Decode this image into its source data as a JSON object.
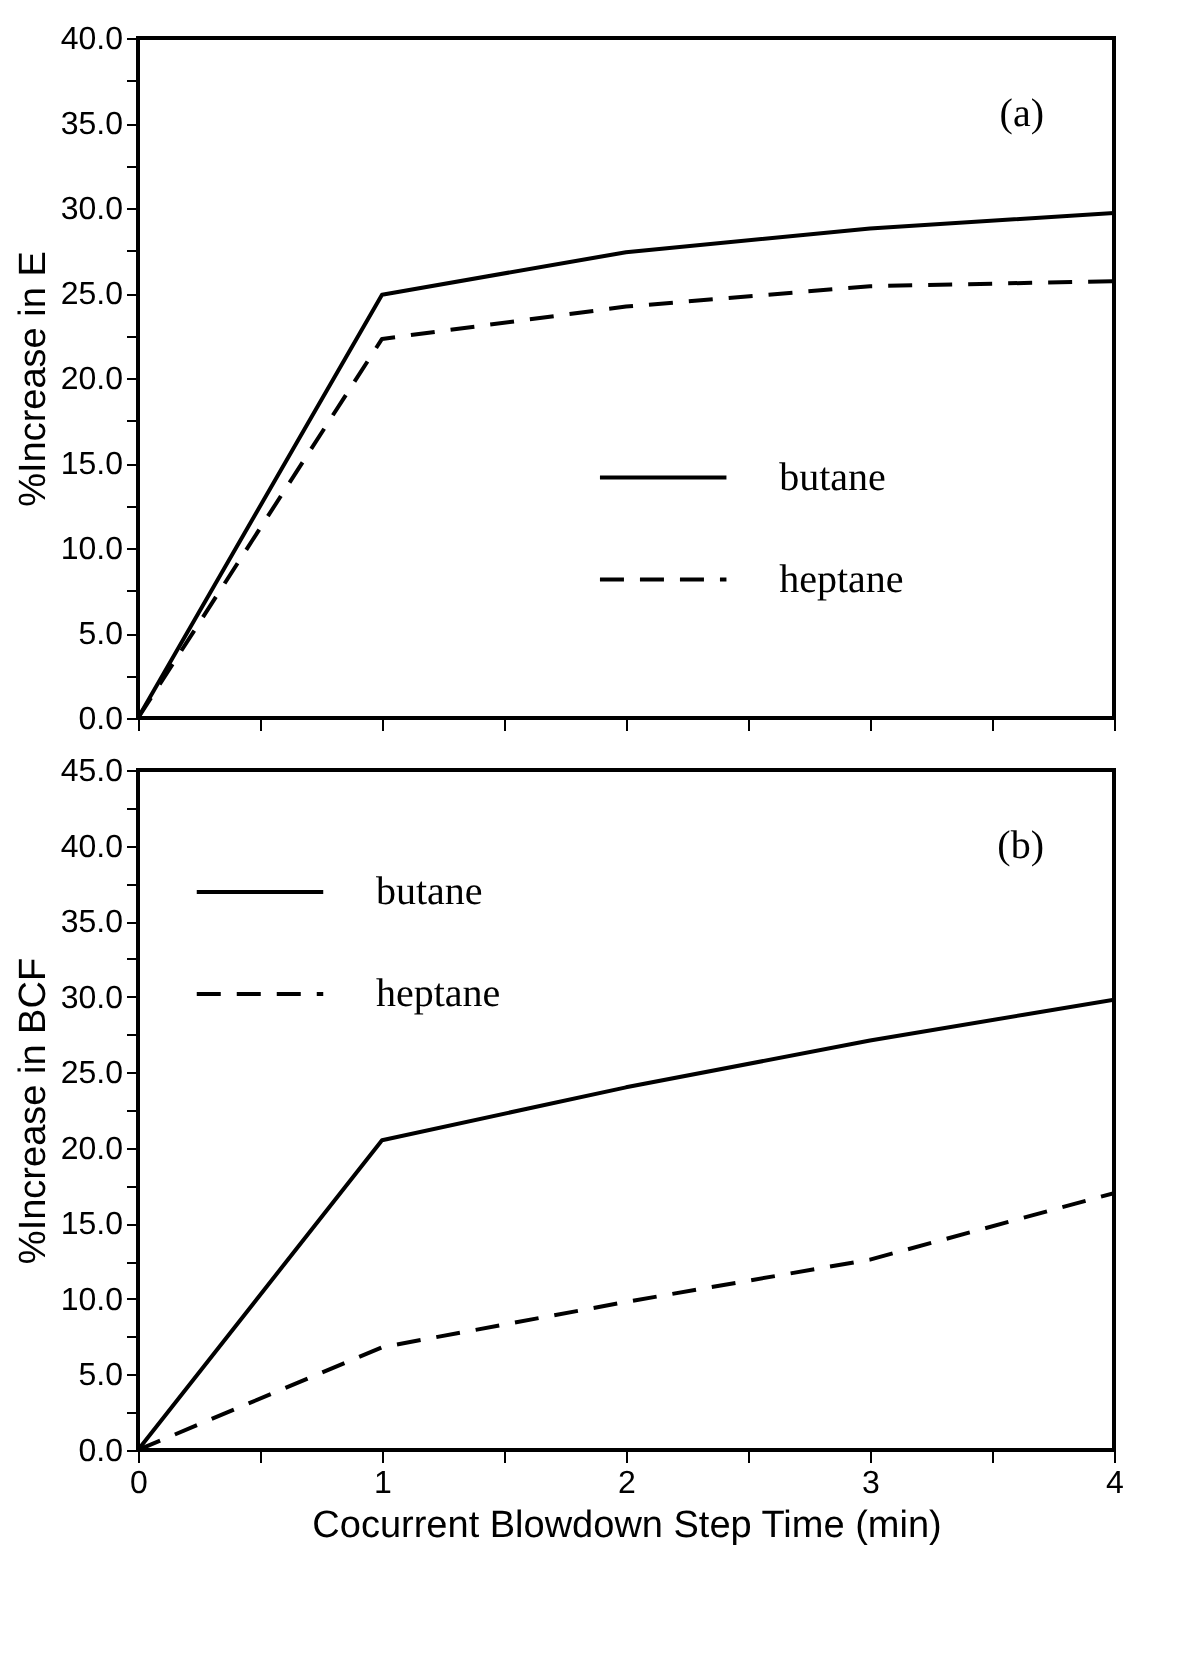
{
  "chart_data": [
    {
      "type": "line",
      "ylabel": "%Increase in E",
      "annotations": [
        "(a)"
      ],
      "legend": "right",
      "tick_labels": "y",
      "grid": false,
      "x": [
        0,
        1,
        2,
        3,
        4
      ],
      "xlim": [
        0,
        4
      ],
      "xticks": [
        {
          "value": 0,
          "label": null
        },
        {
          "value": 0.5,
          "label": null
        },
        {
          "value": 1,
          "label": null
        },
        {
          "value": 1.5,
          "label": null
        },
        {
          "value": 2,
          "label": null
        },
        {
          "value": 2.5,
          "label": null
        },
        {
          "value": 3,
          "label": null
        },
        {
          "value": 3.5,
          "label": null
        },
        {
          "value": 4,
          "label": null
        }
      ],
      "ylim": [
        0,
        40
      ],
      "yticks": [
        {
          "value": 0,
          "label": "0.0"
        },
        {
          "value": 2.5,
          "label": null
        },
        {
          "value": 5,
          "label": "5.0"
        },
        {
          "value": 7.5,
          "label": null
        },
        {
          "value": 10,
          "label": "10.0"
        },
        {
          "value": 12.5,
          "label": null
        },
        {
          "value": 15,
          "label": "15.0"
        },
        {
          "value": 17.5,
          "label": null
        },
        {
          "value": 20,
          "label": "20.0"
        },
        {
          "value": 22.5,
          "label": null
        },
        {
          "value": 25,
          "label": "25.0"
        },
        {
          "value": 27.5,
          "label": null
        },
        {
          "value": 30,
          "label": "30.0"
        },
        {
          "value": 32.5,
          "label": null
        },
        {
          "value": 35,
          "label": "35.0"
        },
        {
          "value": 37.5,
          "label": null
        },
        {
          "value": 40,
          "label": "40.0"
        }
      ],
      "series": [
        {
          "name": "butane",
          "color": "#000000",
          "line_style": "solid",
          "values": [
            0,
            24.9,
            27.4,
            28.8,
            29.7
          ]
        },
        {
          "name": "heptane",
          "color": "#000000",
          "line_style": "dashed",
          "values": [
            0,
            22.3,
            24.2,
            25.4,
            25.7
          ]
        }
      ]
    },
    {
      "type": "line",
      "xlabel": "Cocurrent Blowdown Step Time (min)",
      "ylabel": "%Increase in BCF",
      "annotations": [
        "(b)"
      ],
      "legend": "top left",
      "grid": false,
      "x": [
        0,
        1,
        2,
        3,
        4
      ],
      "xlim": [
        0,
        4
      ],
      "xticks": [
        0,
        {
          "value": 0.5,
          "label": null
        },
        1,
        {
          "value": 1.5,
          "label": null
        },
        2,
        {
          "value": 2.5,
          "label": null
        },
        3,
        {
          "value": 3.5,
          "label": null
        },
        4
      ],
      "ylim": [
        0,
        45
      ],
      "yticks": [
        {
          "value": 0,
          "label": "0.0"
        },
        {
          "value": 2.5,
          "label": null
        },
        {
          "value": 5,
          "label": "5.0"
        },
        {
          "value": 7.5,
          "label": null
        },
        {
          "value": 10,
          "label": "10.0"
        },
        {
          "value": 12.5,
          "label": null
        },
        {
          "value": 15,
          "label": "15.0"
        },
        {
          "value": 17.5,
          "label": null
        },
        {
          "value": 20,
          "label": "20.0"
        },
        {
          "value": 22.5,
          "label": null
        },
        {
          "value": 25,
          "label": "25.0"
        },
        {
          "value": 27.5,
          "label": null
        },
        {
          "value": 30,
          "label": "30.0"
        },
        {
          "value": 32.5,
          "label": null
        },
        {
          "value": 35,
          "label": "35.0"
        },
        {
          "value": 37.5,
          "label": null
        },
        {
          "value": 40,
          "label": "40.0"
        },
        {
          "value": 42.5,
          "label": null
        },
        {
          "value": 45,
          "label": "45.0"
        }
      ],
      "series": [
        {
          "name": "butane",
          "color": "#000000",
          "line_style": "solid",
          "values": [
            0,
            20.5,
            24.0,
            27.1,
            29.8
          ]
        },
        {
          "name": "heptane",
          "color": "#000000",
          "line_style": "dashed",
          "values": [
            0,
            6.8,
            9.8,
            12.6,
            17.0
          ]
        }
      ]
    }
  ]
}
